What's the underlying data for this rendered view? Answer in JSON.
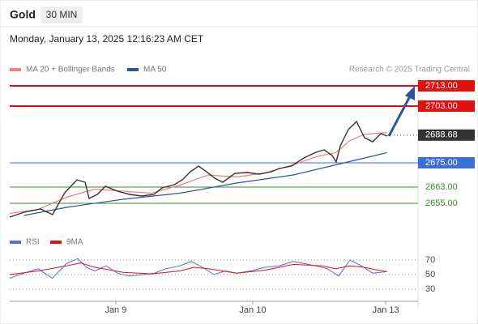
{
  "header": {
    "instrument": "Gold",
    "timeframe": "30 MIN",
    "datetime": "Monday, January 13, 2025 12:16:23 AM CET"
  },
  "source": "Research © 2025 Trading Central",
  "chart_data": [
    {
      "type": "line",
      "color": "#333333",
      "x": [
        0,
        5.1,
        10.9,
        15.1,
        19.4,
        23.7,
        26.6,
        28,
        30.9,
        33.7,
        38,
        42.3,
        46.6,
        50.9,
        53.7,
        58,
        60.9,
        63.7,
        66.6,
        69.4,
        72.3,
        75.1,
        79.4,
        83.7,
        88,
        92.3,
        95.1,
        99.4,
        103.7,
        108,
        110.9,
        113.7,
        115.1,
        116.6,
        119.4,
        122.3,
        125.1,
        128,
        130.9,
        133.1
      ],
      "values": [
        2648.2,
        2650.6,
        2652.2,
        2649.4,
        2660.2,
        2666.6,
        2665.4,
        2657.4,
        2659.4,
        2663.4,
        2661,
        2659.4,
        2658.6,
        2659.4,
        2662.6,
        2664.2,
        2666.6,
        2670.6,
        2673.4,
        2670.6,
        2667.4,
        2665.4,
        2669.8,
        2670.2,
        2669.4,
        2670.6,
        2672.2,
        2673.4,
        2677.4,
        2680.2,
        2681.4,
        2678.6,
        2675.4,
        2683.4,
        2691.4,
        2695.4,
        2687.4,
        2685.4,
        2689.4,
        2688.2
      ],
      "series": [
        {
          "name": "MA 20 + Bollinger Bands",
          "color": "#f08080",
          "x": [
            0,
            10,
            20,
            30,
            40,
            50,
            60,
            70,
            80,
            90,
            100,
            108,
            115,
            120,
            125,
            133
          ],
          "values": [
            2650,
            2652,
            2658,
            2662,
            2661,
            2660,
            2664,
            2669,
            2668,
            2670,
            2674,
            2678,
            2680,
            2686,
            2689,
            2690
          ]
        },
        {
          "name": "MA 50",
          "color": "#2f5597",
          "x": [
            5,
            20,
            40,
            60,
            80,
            100,
            115,
            133
          ],
          "values": [
            2649,
            2653,
            2657,
            2660,
            2665,
            2669,
            2674,
            2680
          ]
        }
      ],
      "levels": [
        {
          "value": 2713,
          "label": "2713.00",
          "color": "#e31010",
          "box": true
        },
        {
          "value": 2703,
          "label": "2703.00",
          "color": "#e31010",
          "box": true
        },
        {
          "value": 2688.68,
          "label": "2688.68",
          "color": "#333333",
          "box": true,
          "dotted": true
        },
        {
          "value": 2675,
          "label": "2675.00",
          "color": "#3a6fd8",
          "box": true
        },
        {
          "value": 2663,
          "label": "2663.00",
          "color": "#3b8a2a",
          "box": false
        },
        {
          "value": 2655,
          "label": "2655.00",
          "color": "#3b8a2a",
          "box": false
        }
      ],
      "xlim": [
        0,
        144
      ],
      "ylim": [
        2644,
        2717
      ],
      "xticks": [
        {
          "value": 37.4,
          "label": "Jan 9"
        },
        {
          "value": 85.7,
          "label": "Jan 10"
        },
        {
          "value": 132.6,
          "label": "Jan 13"
        }
      ]
    },
    {
      "type": "line",
      "series": [
        {
          "name": "RSI",
          "color": "#4a6fd8",
          "x": [
            0,
            5,
            10,
            15,
            20,
            24,
            27,
            30,
            34,
            38,
            42,
            47,
            51,
            55,
            60,
            64,
            68,
            72,
            76,
            80,
            85,
            90,
            95,
            100,
            104,
            108,
            112,
            116,
            120,
            124,
            128,
            133
          ],
          "values": [
            45,
            52,
            58,
            45,
            65,
            72,
            60,
            55,
            62,
            52,
            48,
            50,
            52,
            58,
            62,
            68,
            60,
            50,
            55,
            52,
            55,
            60,
            62,
            68,
            65,
            62,
            58,
            48,
            70,
            62,
            52,
            54
          ]
        },
        {
          "name": "9MA",
          "color": "#e31010",
          "x": [
            0,
            10,
            20,
            25,
            30,
            40,
            50,
            60,
            65,
            70,
            80,
            90,
            100,
            110,
            115,
            120,
            125,
            130,
            133
          ],
          "values": [
            50,
            55,
            62,
            66,
            60,
            53,
            51,
            55,
            60,
            58,
            52,
            56,
            64,
            62,
            58,
            62,
            60,
            56,
            54
          ]
        }
      ],
      "xlim": [
        0,
        144
      ],
      "ylim": [
        15,
        80
      ],
      "yticks": [
        30,
        50,
        70
      ]
    }
  ]
}
